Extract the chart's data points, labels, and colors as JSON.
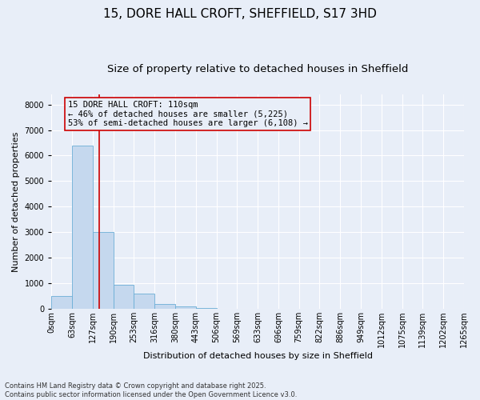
{
  "title1": "15, DORE HALL CROFT, SHEFFIELD, S17 3HD",
  "title2": "Size of property relative to detached houses in Sheffield",
  "xlabel": "Distribution of detached houses by size in Sheffield",
  "ylabel": "Number of detached properties",
  "bar_values": [
    500,
    6400,
    3000,
    950,
    600,
    200,
    100,
    50,
    10,
    5,
    2,
    1,
    0,
    0,
    0,
    0,
    0,
    0,
    0,
    0
  ],
  "bin_labels": [
    "0sqm",
    "63sqm",
    "127sqm",
    "190sqm",
    "253sqm",
    "316sqm",
    "380sqm",
    "443sqm",
    "506sqm",
    "569sqm",
    "633sqm",
    "696sqm",
    "759sqm",
    "822sqm",
    "886sqm",
    "949sqm",
    "1012sqm",
    "1075sqm",
    "1139sqm",
    "1202sqm",
    "1265sqm"
  ],
  "bar_color": "#c5d8ee",
  "bar_edge_color": "#6baed6",
  "background_color": "#e8eef8",
  "grid_color": "#ffffff",
  "annotation_box_color": "#cc0000",
  "vline_color": "#cc0000",
  "vline_x_bar_index": 1.82,
  "annotation_title": "15 DORE HALL CROFT: 110sqm",
  "annotation_line1": "← 46% of detached houses are smaller (5,225)",
  "annotation_line2": "53% of semi-detached houses are larger (6,108) →",
  "ylim": [
    0,
    8400
  ],
  "yticks": [
    0,
    1000,
    2000,
    3000,
    4000,
    5000,
    6000,
    7000,
    8000
  ],
  "footnote": "Contains HM Land Registry data © Crown copyright and database right 2025.\nContains public sector information licensed under the Open Government Licence v3.0.",
  "title_fontsize": 11,
  "subtitle_fontsize": 9.5,
  "axis_label_fontsize": 8,
  "tick_fontsize": 7,
  "annotation_fontsize": 7.5
}
